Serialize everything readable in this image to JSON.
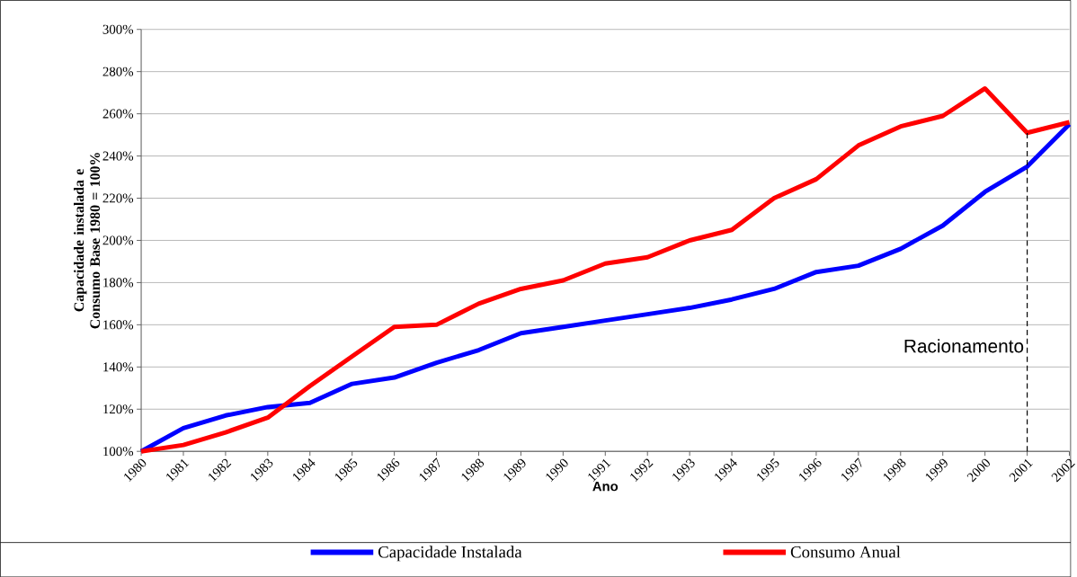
{
  "chart_data": {
    "type": "line",
    "xlabel": "Ano",
    "ylabel": "Capacidade instalada e Consumo Base 1980 = 100%",
    "categories": [
      "1980",
      "1981",
      "1982",
      "1983",
      "1984",
      "1985",
      "1986",
      "1987",
      "1988",
      "1989",
      "1990",
      "1991",
      "1992",
      "1993",
      "1994",
      "1995",
      "1996",
      "1997",
      "1998",
      "1999",
      "2000",
      "2001",
      "2002"
    ],
    "series": [
      {
        "name": "Capacidade Instalada",
        "color": "#0000ff",
        "values": [
          100,
          111,
          117,
          121,
          123,
          132,
          135,
          142,
          148,
          156,
          159,
          162,
          165,
          168,
          172,
          177,
          185,
          188,
          196,
          207,
          223,
          235,
          255
        ]
      },
      {
        "name": "Consumo Anual",
        "color": "#ff0000",
        "values": [
          100,
          103,
          109,
          116,
          131,
          145,
          159,
          160,
          170,
          177,
          181,
          189,
          192,
          200,
          205,
          220,
          229,
          245,
          254,
          259,
          272,
          251,
          256
        ]
      }
    ],
    "ylim": [
      100,
      300
    ],
    "yticks": [
      {
        "value": 100,
        "label": "100%"
      },
      {
        "value": 120,
        "label": "120%"
      },
      {
        "value": 140,
        "label": "140%"
      },
      {
        "value": 160,
        "label": "160%"
      },
      {
        "value": 180,
        "label": "180%"
      },
      {
        "value": 200,
        "label": "200%"
      },
      {
        "value": 220,
        "label": "220%"
      },
      {
        "value": 240,
        "label": "240%"
      },
      {
        "value": 260,
        "label": "260%"
      },
      {
        "value": 280,
        "label": "280%"
      },
      {
        "value": 300,
        "label": "300%"
      }
    ],
    "grid": "y",
    "legend": "bottom",
    "marker": "none",
    "line_style": "solid",
    "ref_lines": [
      {
        "axis": "x",
        "value": "2001",
        "label": "Racionamento",
        "color": "#000000",
        "line_style": "dashed"
      }
    ]
  }
}
